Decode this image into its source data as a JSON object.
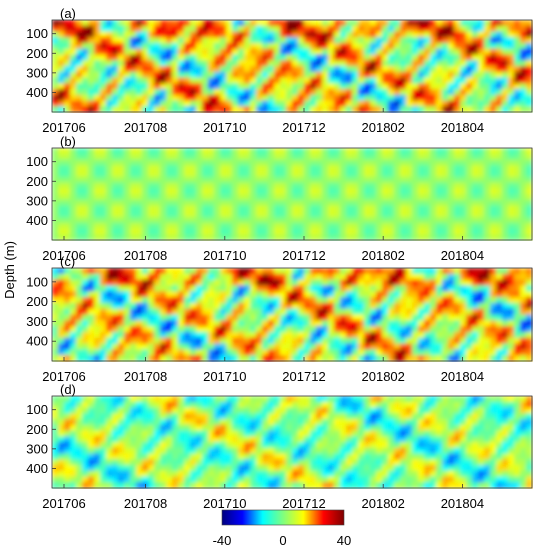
{
  "figure": {
    "ylabel": "Depth (m)",
    "colorbar": {
      "ticks": [
        "-40",
        "0",
        "40"
      ],
      "colormap": "jet",
      "stops": [
        "#00007f",
        "#0000ff",
        "#00ffff",
        "#7fff7f",
        "#ffff00",
        "#ff0000",
        "#7f0000"
      ]
    }
  },
  "chart_data": [
    {
      "type": "heatmap",
      "panel_label": "(a)",
      "x_ticks": [
        "201706",
        "201708",
        "201710",
        "201712",
        "201802",
        "201804"
      ],
      "y_ticks": [
        "100",
        "200",
        "300",
        "400"
      ],
      "ylim": [
        500,
        30
      ],
      "intensity": 0.95,
      "bias": 0.35
    },
    {
      "type": "heatmap",
      "panel_label": "(b)",
      "x_ticks": [
        "201706",
        "201708",
        "201710",
        "201712",
        "201802",
        "201804"
      ],
      "y_ticks": [
        "100",
        "200",
        "300",
        "400"
      ],
      "ylim": [
        500,
        30
      ],
      "intensity": 0.25,
      "bias": 0.12
    },
    {
      "type": "heatmap",
      "panel_label": "(c)",
      "x_ticks": [
        "201706",
        "201708",
        "201710",
        "201712",
        "201802",
        "201804"
      ],
      "y_ticks": [
        "100",
        "200",
        "300",
        "400"
      ],
      "ylim": [
        500,
        30
      ],
      "intensity": 0.9,
      "bias": 0.3
    },
    {
      "type": "heatmap",
      "panel_label": "(d)",
      "x_ticks": [
        "201706",
        "201708",
        "201710",
        "201712",
        "201802",
        "201804"
      ],
      "y_ticks": [
        "100",
        "200",
        "300",
        "400"
      ],
      "ylim": [
        500,
        30
      ],
      "intensity": 0.55,
      "bias": 0.0
    }
  ]
}
